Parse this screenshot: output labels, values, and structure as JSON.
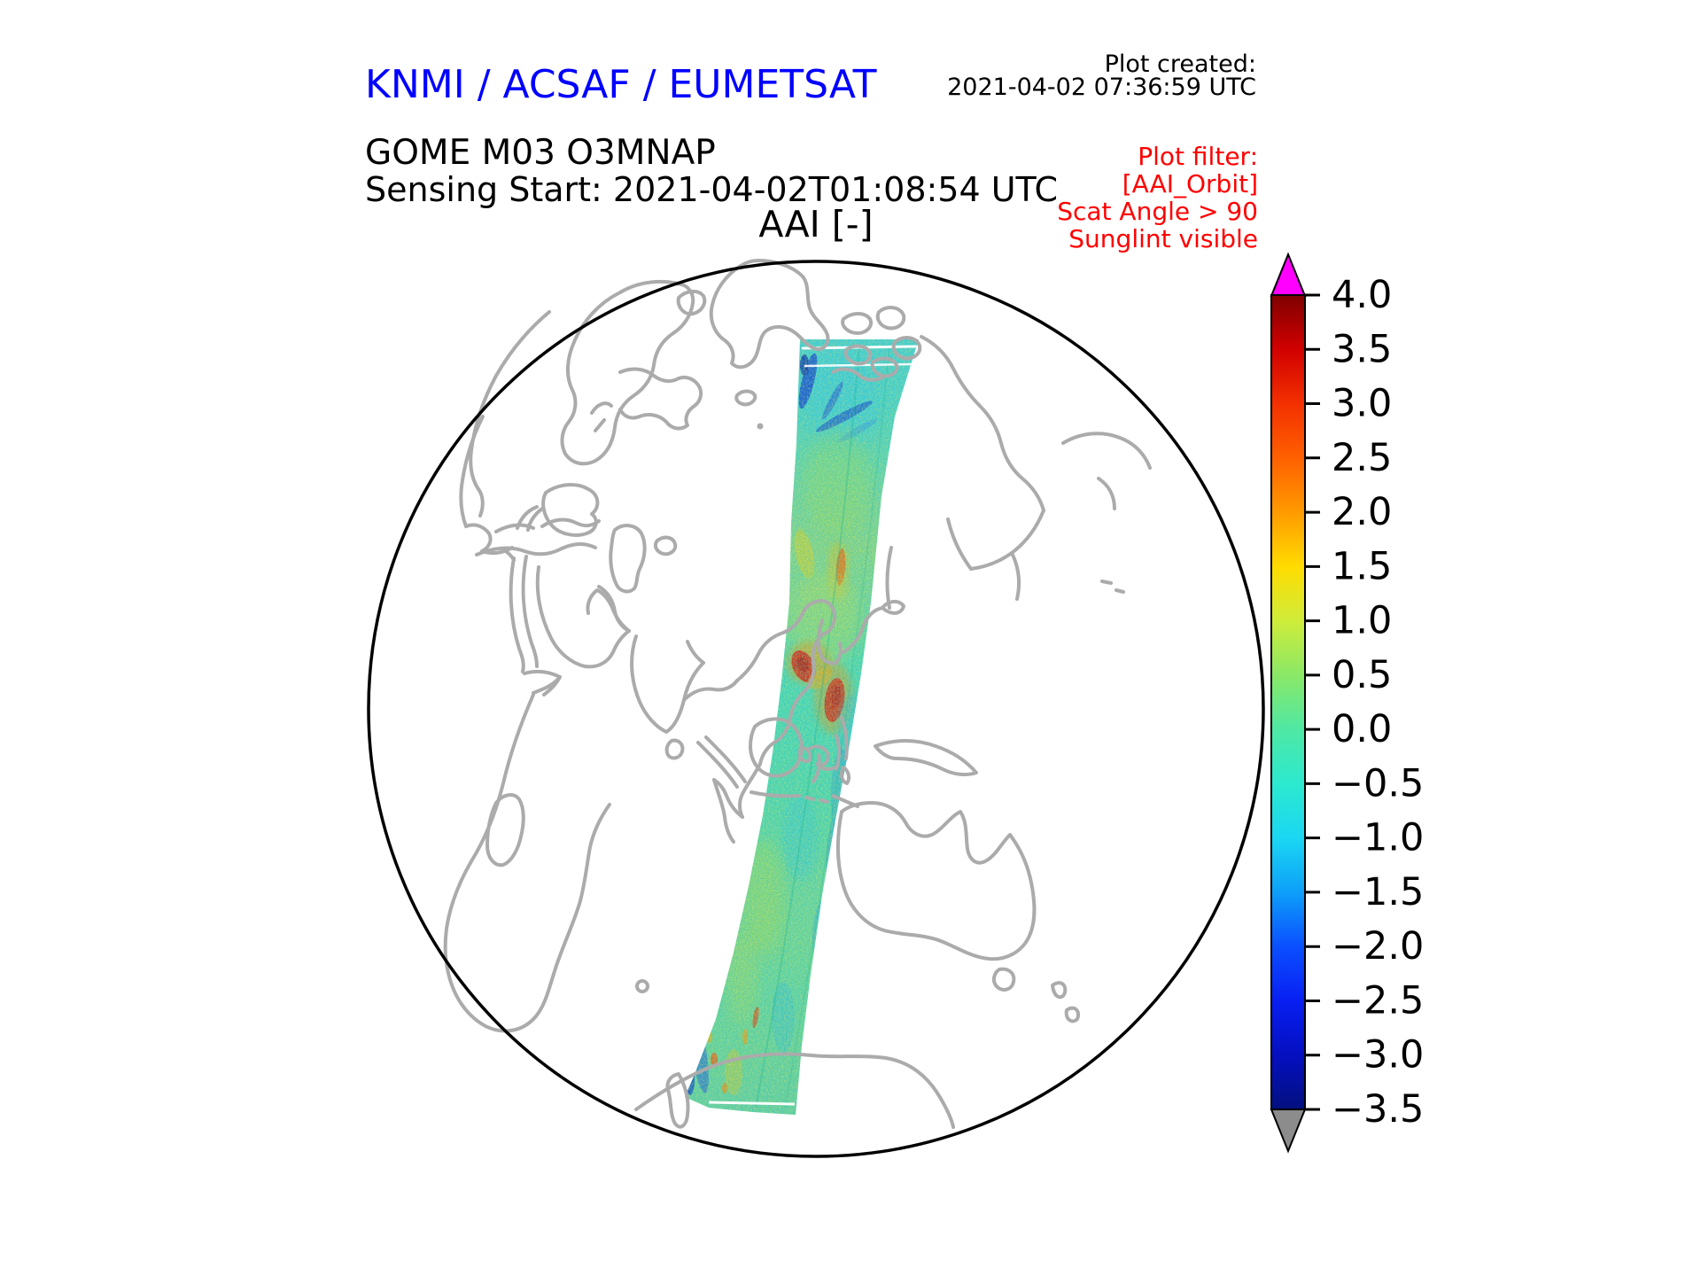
{
  "header": {
    "org_title": "KNMI / ACSAF / EUMETSAT",
    "org_title_color": "#0000ff",
    "plot_created": {
      "label": "Plot created:",
      "timestamp": "2021-04-02 07:36:59 UTC"
    },
    "product": {
      "line1": "GOME M03 O3MNAP",
      "line2": "Sensing Start: 2021-04-02T01:08:54 UTC"
    },
    "plot_filter": {
      "color": "#ff0000",
      "lines": [
        "Plot filter:",
        "[AAI_Orbit]",
        "Scat Angle > 90",
        "Sunglint visible"
      ]
    }
  },
  "map": {
    "title": "AAI [-]",
    "coastline_color": "#ababab",
    "globe_outline_color": "#000000",
    "background_color": "#ffffff"
  },
  "chart_data": {
    "type": "heatmap",
    "title": "AAI [-]",
    "projection": "orthographic-globe",
    "visible_region": "Europe, Africa, Asia, Indonesia, Australia, Antarctica",
    "swath": {
      "description": "Single north-south GOME-2 (Metop-A) orbit swath of Absorbing Aerosol Index from the Arctic near Novaya Zemlya down across China, Korea, Japan, Indonesia and west of Australia to the Antarctic coast",
      "dominant_value_range": [
        -0.5,
        0.5
      ],
      "hotspots": [
        {
          "area": "Yellow Sea / eastern China near Korea",
          "aai": "2.5 to 3.5"
        },
        {
          "area": "East China Sea / Ryukyu area",
          "aai": "2.5 to 3.5"
        },
        {
          "area": "north of Japan (streak)",
          "aai": "1.5 to 2.5"
        },
        {
          "area": "near Antarctic coast at swath end",
          "aai": "1.0 to 2.5"
        }
      ],
      "low_patches": [
        {
          "area": "Arctic swath edge (top-left)",
          "aai": "-2.0 to -3.5"
        },
        {
          "area": "left edge near Antarctica",
          "aai": "-1.5 to -3.0"
        }
      ]
    },
    "colorbar": {
      "label": "AAI [-]",
      "vmin": -3.5,
      "vmax": 4.0,
      "ticks": [
        4.0,
        3.5,
        3.0,
        2.5,
        2.0,
        1.5,
        1.0,
        0.5,
        0.0,
        -0.5,
        -1.0,
        -1.5,
        -2.0,
        -2.5,
        -3.0,
        -3.5
      ],
      "tick_labels": [
        "4.0",
        "3.5",
        "3.0",
        "2.5",
        "2.0",
        "1.5",
        "1.0",
        "0.5",
        "0.0",
        "−0.5",
        "−1.0",
        "−1.5",
        "−2.0",
        "−2.5",
        "−3.0",
        "−3.5"
      ],
      "over_arrow_color": "#ff00ff",
      "under_arrow_color": "#8c8c8c",
      "gradient_stops": [
        {
          "value": 4.0,
          "color": "#7f0000"
        },
        {
          "value": 3.5,
          "color": "#d10000"
        },
        {
          "value": 3.0,
          "color": "#f33000"
        },
        {
          "value": 2.5,
          "color": "#ff6000"
        },
        {
          "value": 2.0,
          "color": "#ff9a00"
        },
        {
          "value": 1.5,
          "color": "#ffdc00"
        },
        {
          "value": 1.0,
          "color": "#cfec3a"
        },
        {
          "value": 0.5,
          "color": "#8ae866"
        },
        {
          "value": 0.0,
          "color": "#4fe8a4"
        },
        {
          "value": -0.5,
          "color": "#2ce9cf"
        },
        {
          "value": -1.0,
          "color": "#1bd7f2"
        },
        {
          "value": -1.5,
          "color": "#0d9ff9"
        },
        {
          "value": -2.0,
          "color": "#0b4fff"
        },
        {
          "value": -2.5,
          "color": "#081ff2"
        },
        {
          "value": -3.0,
          "color": "#050fc0"
        },
        {
          "value": -3.5,
          "color": "#03107f"
        }
      ]
    }
  }
}
